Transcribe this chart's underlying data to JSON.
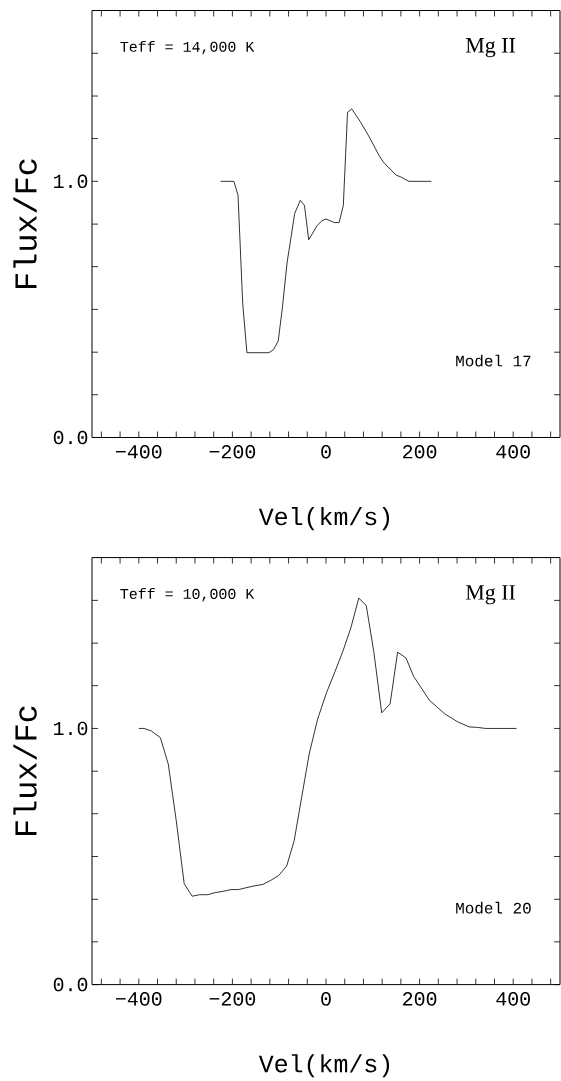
{
  "chart_data": [
    {
      "type": "line",
      "xlabel": "Vel(km/s)",
      "ylabel": "Flux/Fc",
      "color": "#000000",
      "annotations": [
        "Teff = 14,000 K",
        "Mg II",
        "Model 17"
      ],
      "xlim": [
        -500,
        500
      ],
      "ylim": [
        0,
        1.667
      ],
      "xticks": [
        {
          "value": -480,
          "label": null
        },
        {
          "value": -440,
          "label": null
        },
        {
          "value": -400,
          "label": "−400"
        },
        {
          "value": -360,
          "label": null
        },
        {
          "value": -320,
          "label": null
        },
        {
          "value": -280,
          "label": null
        },
        {
          "value": -240,
          "label": null
        },
        {
          "value": -200,
          "label": "−200"
        },
        {
          "value": -160,
          "label": null
        },
        {
          "value": -120,
          "label": null
        },
        {
          "value": -80,
          "label": null
        },
        {
          "value": -40,
          "label": null
        },
        {
          "value": 0,
          "label": "0"
        },
        {
          "value": 40,
          "label": null
        },
        {
          "value": 80,
          "label": null
        },
        {
          "value": 120,
          "label": null
        },
        {
          "value": 160,
          "label": null
        },
        {
          "value": 200,
          "label": "200"
        },
        {
          "value": 240,
          "label": null
        },
        {
          "value": 280,
          "label": null
        },
        {
          "value": 320,
          "label": null
        },
        {
          "value": 360,
          "label": null
        },
        {
          "value": 400,
          "label": "400"
        },
        {
          "value": 440,
          "label": null
        },
        {
          "value": 480,
          "label": null
        }
      ],
      "yticks": [
        {
          "value": 0,
          "label": "0.0"
        },
        {
          "value": 0.167,
          "label": null
        },
        {
          "value": 0.333,
          "label": null
        },
        {
          "value": 0.5,
          "label": null
        },
        {
          "value": 0.667,
          "label": null
        },
        {
          "value": 0.833,
          "label": null
        },
        {
          "value": 1.0,
          "label": "1.0"
        },
        {
          "value": 1.167,
          "label": null
        },
        {
          "value": 1.333,
          "label": null
        },
        {
          "value": 1.5,
          "label": null
        }
      ],
      "x": [
        -225,
        -197,
        -188,
        -178,
        -169,
        -122,
        -112,
        -102,
        -93,
        -83,
        -74,
        -67,
        -55,
        -46,
        -37,
        -19,
        -9,
        0,
        18,
        28,
        37,
        46,
        55,
        74,
        94,
        113,
        123,
        150,
        159,
        177,
        225
      ],
      "values": [
        1.0,
        1.0,
        0.947,
        0.524,
        0.331,
        0.331,
        0.343,
        0.378,
        0.51,
        0.685,
        0.79,
        0.874,
        0.926,
        0.906,
        0.772,
        0.827,
        0.846,
        0.853,
        0.839,
        0.839,
        0.906,
        1.269,
        1.283,
        1.231,
        1.168,
        1.102,
        1.074,
        1.024,
        1.018,
        1.0,
        1.0
      ]
    },
    {
      "type": "line",
      "xlabel": "Vel(km/s)",
      "ylabel": "Flux/Fc",
      "color": "#000000",
      "annotations": [
        "Teff = 10,000 K",
        "Mg II",
        "Model 20"
      ],
      "xlim": [
        -500,
        500
      ],
      "ylim": [
        0,
        1.667
      ],
      "xticks": [
        {
          "value": -480,
          "label": null
        },
        {
          "value": -440,
          "label": null
        },
        {
          "value": -400,
          "label": "−400"
        },
        {
          "value": -360,
          "label": null
        },
        {
          "value": -320,
          "label": null
        },
        {
          "value": -280,
          "label": null
        },
        {
          "value": -240,
          "label": null
        },
        {
          "value": -200,
          "label": "−200"
        },
        {
          "value": -160,
          "label": null
        },
        {
          "value": -120,
          "label": null
        },
        {
          "value": -80,
          "label": null
        },
        {
          "value": -40,
          "label": null
        },
        {
          "value": 0,
          "label": "0"
        },
        {
          "value": 40,
          "label": null
        },
        {
          "value": 80,
          "label": null
        },
        {
          "value": 120,
          "label": null
        },
        {
          "value": 160,
          "label": null
        },
        {
          "value": 200,
          "label": "200"
        },
        {
          "value": 240,
          "label": null
        },
        {
          "value": 280,
          "label": null
        },
        {
          "value": 320,
          "label": null
        },
        {
          "value": 360,
          "label": null
        },
        {
          "value": 400,
          "label": "400"
        },
        {
          "value": 440,
          "label": null
        },
        {
          "value": 480,
          "label": null
        }
      ],
      "yticks": [
        {
          "value": 0,
          "label": "0.0"
        },
        {
          "value": 0.167,
          "label": null
        },
        {
          "value": 0.333,
          "label": null
        },
        {
          "value": 0.5,
          "label": null
        },
        {
          "value": 0.667,
          "label": null
        },
        {
          "value": 0.833,
          "label": null
        },
        {
          "value": 1.0,
          "label": "1.0"
        },
        {
          "value": 1.167,
          "label": null
        },
        {
          "value": 1.333,
          "label": null
        },
        {
          "value": 1.5,
          "label": null
        }
      ],
      "x": [
        -400,
        -389,
        -373,
        -354,
        -337,
        -320,
        -303,
        -286,
        -270,
        -253,
        -237,
        -220,
        -203,
        -187,
        -171,
        -154,
        -135,
        -118,
        -101,
        -84,
        -68,
        -52,
        -36,
        -18,
        1,
        19,
        36,
        53,
        70,
        86,
        102,
        119,
        137,
        153,
        171,
        187,
        221,
        253,
        281,
        306,
        324,
        341,
        407
      ],
      "values": [
        1.0,
        1.0,
        0.99,
        0.964,
        0.861,
        0.64,
        0.394,
        0.345,
        0.351,
        0.351,
        0.359,
        0.364,
        0.371,
        0.371,
        0.378,
        0.385,
        0.391,
        0.407,
        0.426,
        0.463,
        0.562,
        0.731,
        0.9,
        1.036,
        1.139,
        1.221,
        1.301,
        1.392,
        1.509,
        1.48,
        1.301,
        1.061,
        1.096,
        1.298,
        1.275,
        1.204,
        1.11,
        1.058,
        1.026,
        1.006,
        1.004,
        1.0,
        1.0
      ]
    }
  ]
}
